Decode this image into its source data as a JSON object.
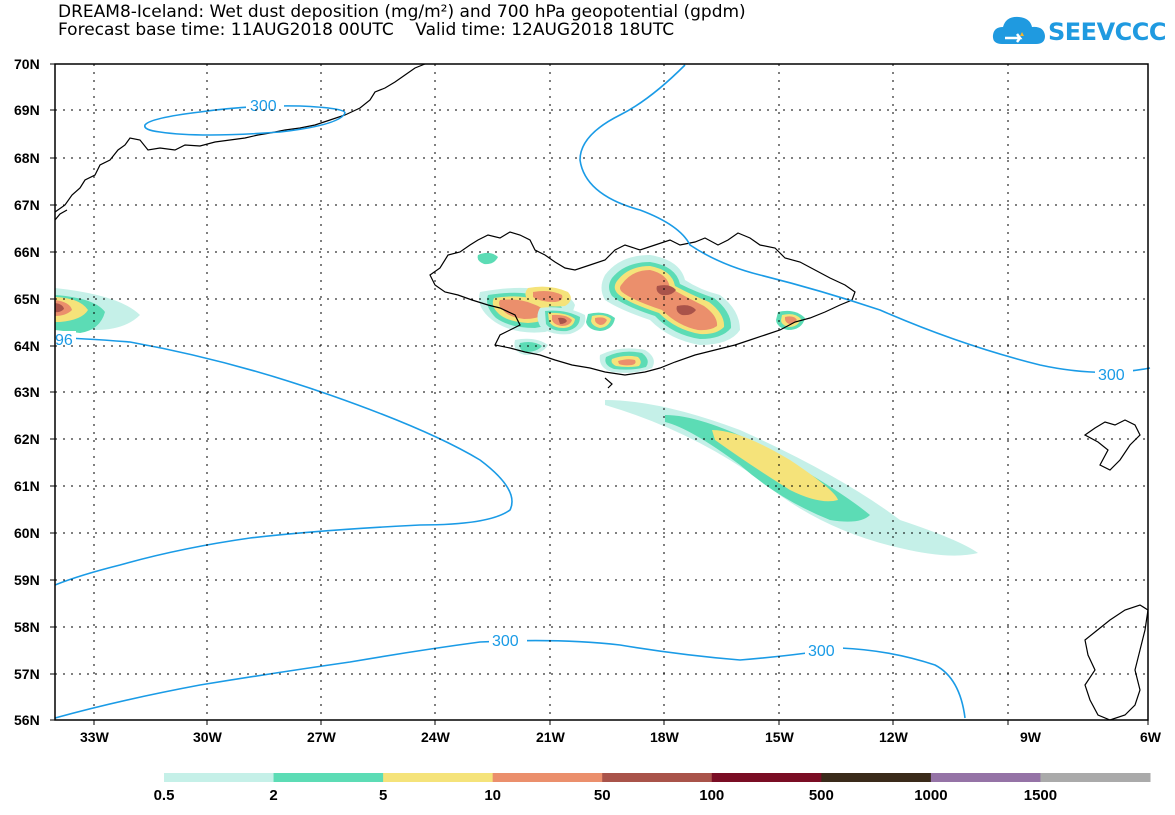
{
  "title": {
    "line1": "DREAM8-Iceland: Wet dust deposition (mg/m²) and 700 hPa geopotential (gpdm)",
    "line2": "Forecast base time: 11AUG2018 00UTC    Valid time: 12AUG2018 18UTC"
  },
  "logo": {
    "text": "SEEVCCC",
    "icon": "cloud-icon",
    "color": "#1f9ae0"
  },
  "map": {
    "lat_labels": [
      "70N",
      "69N",
      "68N",
      "67N",
      "66N",
      "65N",
      "64N",
      "63N",
      "62N",
      "61N",
      "60N",
      "59N",
      "58N",
      "57N",
      "56N"
    ],
    "lon_labels": [
      "33W",
      "30W",
      "27W",
      "24W",
      "21W",
      "18W",
      "15W",
      "12W",
      "9W",
      "6W"
    ],
    "contour_labels": [
      "300",
      "300",
      "300",
      "300",
      "96"
    ],
    "contour_color": "#1a9be6"
  },
  "colorbar": {
    "labels": [
      "0.5",
      "2",
      "5",
      "10",
      "50",
      "100",
      "500",
      "1000",
      "1500"
    ],
    "colors": [
      "#c5f0e8",
      "#5cdcb5",
      "#f5e37a",
      "#eb8f6c",
      "#a9534a",
      "#7a0d24",
      "#3a2a1a",
      "#9573a6",
      "#aaaaaa"
    ]
  }
}
